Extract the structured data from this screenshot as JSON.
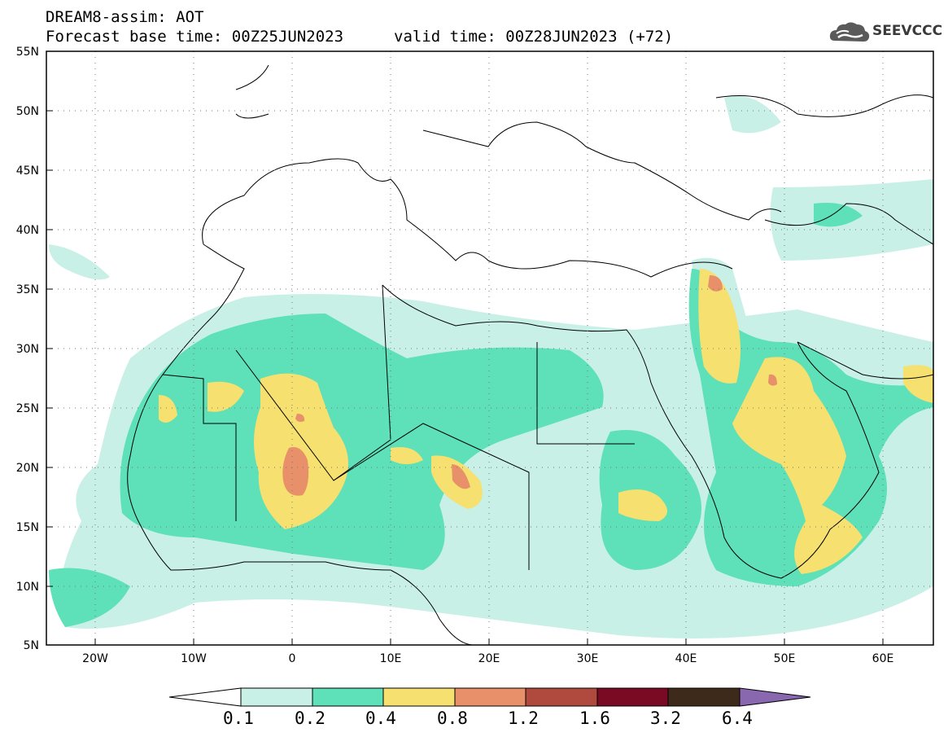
{
  "header": {
    "product": "DREAM8-assim: AOT",
    "base_time": "Forecast base time: 00Z25JUN2023",
    "valid_time": "valid time: 00Z28JUN2023 (+72)"
  },
  "logo": {
    "text": "SEEVCCC",
    "icon": "cloud-icon"
  },
  "map": {
    "lon_range": [
      -25,
      65
    ],
    "lat_range": [
      5,
      55
    ],
    "lon_labels": [
      "20W",
      "10W",
      "0",
      "10E",
      "20E",
      "30E",
      "40E",
      "50E",
      "60E"
    ],
    "lat_labels": [
      "55N",
      "50N",
      "45N",
      "40N",
      "35N",
      "30N",
      "25N",
      "20N",
      "15N",
      "10N",
      "5N"
    ]
  },
  "colorbar": {
    "labels": [
      "0.1",
      "0.2",
      "0.4",
      "0.8",
      "1.2",
      "1.6",
      "3.2",
      "6.4"
    ],
    "colors": [
      "#ffffff",
      "#c8f0e6",
      "#5ee0b8",
      "#f5e070",
      "#e8906a",
      "#b04a3e",
      "#7a0a24",
      "#3e2a1a",
      "#8a68b0"
    ]
  }
}
